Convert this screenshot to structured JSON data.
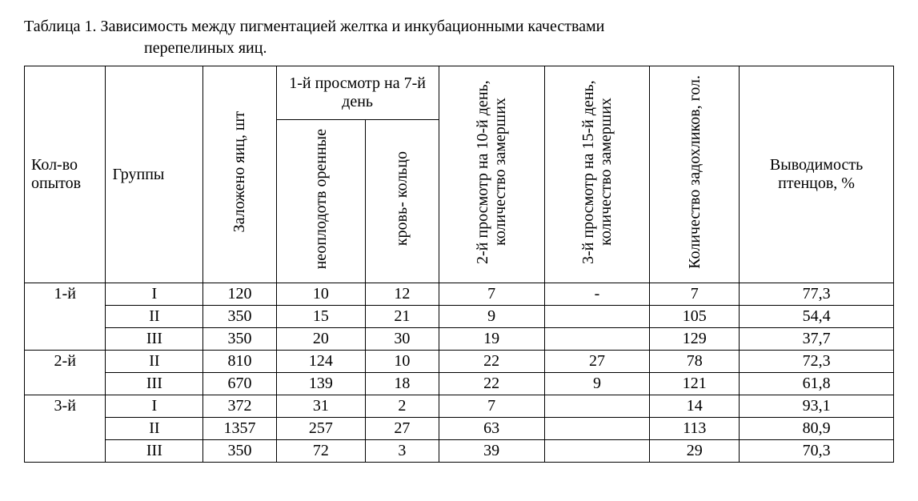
{
  "caption": {
    "prefix": "Таблица 1.",
    "text_line1": "Зависимость между пигментацией желтка и инкубационными качествами",
    "text_line2": "перепелиных яиц."
  },
  "headers": {
    "col1": "Кол-во опытов",
    "col2": "Группы",
    "col3": "Заложено яиц, шт",
    "col4_group": "1-й просмотр на 7-й день",
    "col4a": "неоплодотв\nоренные",
    "col4b": "кровь-\nкольцо",
    "col5": "2-й просмотр на 10-й\nдень, количество\nзамерших",
    "col6": "3-й просмотр на 15-й\nдень, количество\nзамерших",
    "col7": "Количество\nзадохликов, гол.",
    "col8": "Выводимость птенцов, %"
  },
  "rows": [
    {
      "exp": "1-й",
      "span": 3,
      "group": "I",
      "eggs": "120",
      "unfert": "10",
      "blood": "12",
      "d10": "7",
      "d15": "-",
      "suff": "7",
      "hatch": "77,3"
    },
    {
      "exp": "",
      "span": 0,
      "group": "II",
      "eggs": "350",
      "unfert": "15",
      "blood": "21",
      "d10": "9",
      "d15": "",
      "suff": "105",
      "hatch": "54,4"
    },
    {
      "exp": "",
      "span": 0,
      "group": "III",
      "eggs": "350",
      "unfert": "20",
      "blood": "30",
      "d10": "19",
      "d15": "",
      "suff": "129",
      "hatch": "37,7"
    },
    {
      "exp": "2-й",
      "span": 2,
      "group": "II",
      "eggs": "810",
      "unfert": "124",
      "blood": "10",
      "d10": "22",
      "d15": "27",
      "suff": "78",
      "hatch": "72,3"
    },
    {
      "exp": "",
      "span": 0,
      "group": "III",
      "eggs": "670",
      "unfert": "139",
      "blood": "18",
      "d10": "22",
      "d15": "9",
      "suff": "121",
      "hatch": "61,8"
    },
    {
      "exp": "3-й",
      "span": 3,
      "group": "I",
      "eggs": "372",
      "unfert": "31",
      "blood": "2",
      "d10": "7",
      "d15": "",
      "suff": "14",
      "hatch": "93,1"
    },
    {
      "exp": "",
      "span": 0,
      "group": "II",
      "eggs": "1357",
      "unfert": "257",
      "blood": "27",
      "d10": "63",
      "d15": "",
      "suff": "113",
      "hatch": "80,9"
    },
    {
      "exp": "",
      "span": 0,
      "group": "III",
      "eggs": "350",
      "unfert": "72",
      "blood": "3",
      "d10": "39",
      "d15": "",
      "suff": "29",
      "hatch": "70,3"
    }
  ],
  "style": {
    "font_family": "Times New Roman",
    "font_size_pt": 15,
    "border_color": "#000000",
    "background": "#ffffff",
    "text_color": "#000000"
  }
}
